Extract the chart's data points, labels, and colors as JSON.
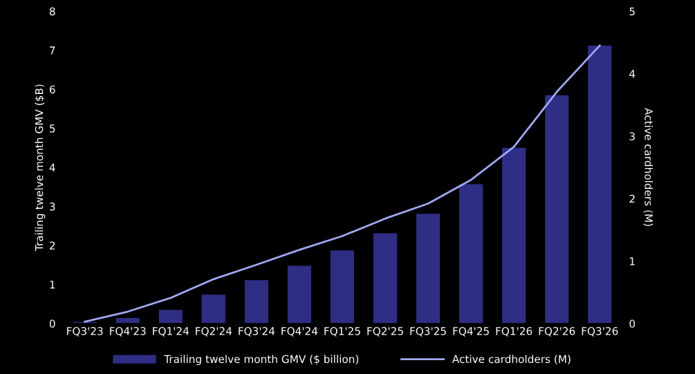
{
  "chart_data": {
    "type": "bar",
    "ylabel": "Trailing twelve month GMV ($B)",
    "y2label": "Active cardholders (M)",
    "categories": [
      "FQ3'23",
      "FQ4'23",
      "FQ1'24",
      "FQ2'24",
      "FQ3'24",
      "FQ4'24",
      "FQ1'25",
      "FQ2'25",
      "FQ3'25",
      "FQ4'25",
      "FQ1'26",
      "FQ2'26",
      "FQ3'26"
    ],
    "series": [
      {
        "name": "Trailing twelve month GMV ($ billion)",
        "color": "#2e2e85",
        "values": [
          0.04,
          0.14,
          0.35,
          0.74,
          1.11,
          1.48,
          1.87,
          2.31,
          2.81,
          3.57,
          4.5,
          5.85,
          7.12
        ]
      },
      {
        "name": "Active cardholders (M)",
        "type": "line",
        "axis": "y2",
        "color": "#a0a8f5",
        "values": [
          0.03,
          0.19,
          0.41,
          0.71,
          0.94,
          1.18,
          1.4,
          1.68,
          1.92,
          2.3,
          2.83,
          3.71,
          4.45
        ]
      }
    ],
    "ylim": [
      0,
      8
    ],
    "yticks": [
      0,
      1,
      2,
      3,
      4,
      5,
      6,
      7,
      8
    ],
    "y2lim": [
      0,
      5
    ],
    "y2ticks": [
      0,
      1,
      2,
      3,
      4,
      5
    ],
    "grid": false,
    "legend": "bottom",
    "marker": "none",
    "line_style": "solid"
  }
}
